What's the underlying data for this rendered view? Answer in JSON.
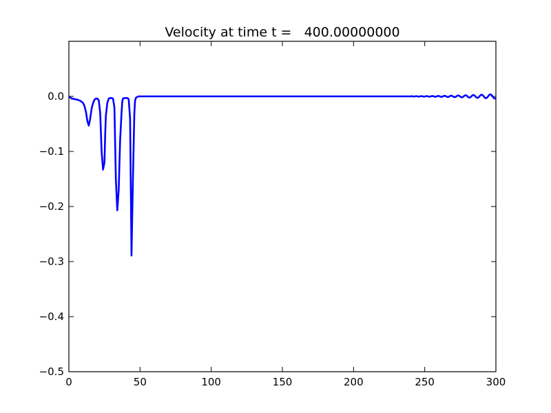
{
  "chart_data": {
    "type": "line",
    "title": "Velocity at time t =   400.00000000",
    "xlabel": "",
    "ylabel": "",
    "xlim": [
      0,
      300
    ],
    "ylim": [
      -0.5,
      0.1
    ],
    "x_ticks": [
      0,
      50,
      100,
      150,
      200,
      250,
      300
    ],
    "x_tick_labels": [
      "0",
      "50",
      "100",
      "150",
      "200",
      "250",
      "300"
    ],
    "y_ticks": [
      0.0,
      -0.1,
      -0.2,
      -0.3,
      -0.4,
      -0.5
    ],
    "y_tick_labels": [
      "0.0",
      "−0.1",
      "−0.2",
      "−0.3",
      "−0.4",
      "−0.5"
    ],
    "grid": false,
    "legend": "none",
    "line_color": "#0000ff",
    "series": [
      {
        "x": [
          0,
          2,
          4,
          6,
          8,
          10,
          11,
          12,
          13,
          14,
          15,
          16,
          17,
          18,
          19,
          20,
          21,
          22,
          23,
          24,
          25,
          25.5,
          26,
          27,
          28,
          29,
          30,
          31,
          32,
          33,
          34,
          35,
          36,
          37,
          37.5,
          38,
          39,
          40,
          41,
          42,
          43,
          44,
          45,
          46,
          46.5,
          47,
          48,
          49,
          50,
          52,
          60,
          100,
          150,
          200,
          240
        ],
        "y": [
          0.0,
          -0.004,
          -0.005,
          -0.006,
          -0.008,
          -0.012,
          -0.018,
          -0.028,
          -0.045,
          -0.053,
          -0.04,
          -0.022,
          -0.012,
          -0.006,
          -0.004,
          -0.004,
          -0.007,
          -0.03,
          -0.1,
          -0.133,
          -0.12,
          -0.07,
          -0.035,
          -0.012,
          -0.004,
          -0.003,
          -0.003,
          -0.004,
          -0.02,
          -0.15,
          -0.207,
          -0.17,
          -0.08,
          -0.03,
          -0.01,
          -0.004,
          -0.003,
          -0.003,
          -0.003,
          -0.005,
          -0.04,
          -0.289,
          -0.15,
          -0.03,
          -0.008,
          -0.003,
          -0.001,
          0.0,
          0.0,
          0.0,
          0.0,
          0.0,
          0.0,
          0.0,
          0.0
        ]
      }
    ],
    "oscillation": {
      "x_start": 240,
      "x_end": 300,
      "amplitude_start": 0.0003,
      "amplitude_end": 0.004,
      "period_start": 3.2,
      "period_end": 6.5
    }
  }
}
